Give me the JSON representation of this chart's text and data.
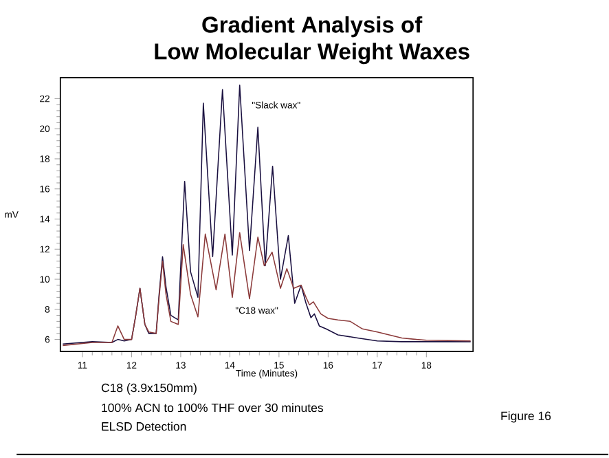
{
  "chart_data": {
    "type": "line",
    "title": "Gradient Analysis of\nLow Molecular Weight Waxes",
    "xlabel": "Time (Minutes)",
    "ylabel": "mV",
    "xlim": [
      10.55,
      18.95
    ],
    "ylim": [
      5.2,
      23.4
    ],
    "xticks": [
      11,
      12,
      13,
      14,
      15,
      16,
      17,
      18
    ],
    "yticks": [
      6,
      8,
      10,
      12,
      14,
      16,
      18,
      20,
      22
    ],
    "grid": false,
    "legend": false,
    "marker": "none",
    "line_style": "solid",
    "series": [
      {
        "name": "\"Slack wax\"",
        "color": "#1a1040",
        "x": [
          10.6,
          11.2,
          11.6,
          11.72,
          11.85,
          12.0,
          12.08,
          12.17,
          12.27,
          12.35,
          12.5,
          12.56,
          12.63,
          12.7,
          12.8,
          12.95,
          13.08,
          13.2,
          13.35,
          13.46,
          13.65,
          13.85,
          14.05,
          14.2,
          14.4,
          14.57,
          14.72,
          14.87,
          15.03,
          15.19,
          15.32,
          15.45,
          15.55,
          15.65,
          15.72,
          15.82,
          15.96,
          16.2,
          16.6,
          17.0,
          17.5,
          18.0,
          18.9
        ],
        "values": [
          5.7,
          5.85,
          5.8,
          6.0,
          5.9,
          6.0,
          7.5,
          9.4,
          7.0,
          6.4,
          6.4,
          9.0,
          11.5,
          9.5,
          7.6,
          7.3,
          16.5,
          10.5,
          8.8,
          21.7,
          11.5,
          22.6,
          11.6,
          22.9,
          11.9,
          20.1,
          10.9,
          17.5,
          10.0,
          12.9,
          8.4,
          9.6,
          8.4,
          7.45,
          7.7,
          6.9,
          6.7,
          6.3,
          6.1,
          5.9,
          5.85,
          5.85,
          5.85
        ]
      },
      {
        "name": "\"C18 wax\"",
        "color": "#8b3a3a",
        "x": [
          10.6,
          11.2,
          11.6,
          11.72,
          11.85,
          12.0,
          12.08,
          12.17,
          12.27,
          12.35,
          12.5,
          12.56,
          12.63,
          12.7,
          12.8,
          12.95,
          13.05,
          13.2,
          13.35,
          13.5,
          13.72,
          13.9,
          14.05,
          14.2,
          14.4,
          14.57,
          14.7,
          14.86,
          15.03,
          15.16,
          15.3,
          15.45,
          15.55,
          15.62,
          15.7,
          15.85,
          16.0,
          16.2,
          16.45,
          16.7,
          17.0,
          17.5,
          17.8,
          18.0,
          18.9
        ],
        "values": [
          5.6,
          5.8,
          5.8,
          6.9,
          6.0,
          6.0,
          7.5,
          9.4,
          7.0,
          6.5,
          6.4,
          8.8,
          11.2,
          9.0,
          7.2,
          7.0,
          12.3,
          9.0,
          7.5,
          13.0,
          9.3,
          13.0,
          8.8,
          13.1,
          8.7,
          12.8,
          10.9,
          11.8,
          9.4,
          10.7,
          9.4,
          9.6,
          8.8,
          8.3,
          8.5,
          7.7,
          7.4,
          7.3,
          7.2,
          6.7,
          6.5,
          6.1,
          6.0,
          5.95,
          5.9
        ]
      }
    ],
    "annotations": [
      "C18 (3.9x150mm)",
      "100% ACN to 100% THF over 30 minutes",
      "ELSD Detection",
      "Figure 16"
    ]
  }
}
